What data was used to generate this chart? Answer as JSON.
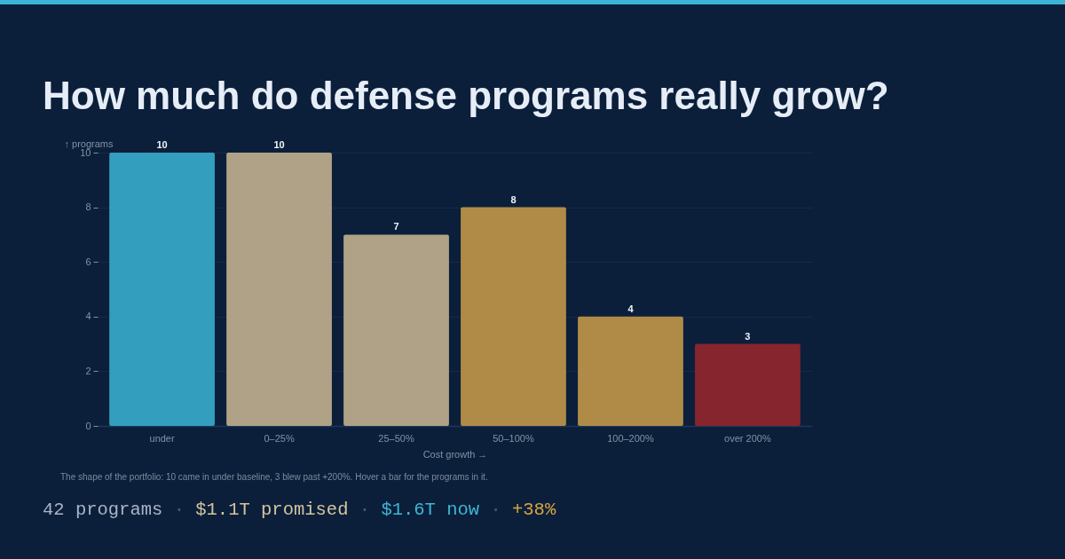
{
  "chart_data": {
    "type": "bar",
    "title": "How much do defense programs really grow?",
    "xlabel": "Cost growth →",
    "ylabel": "↑ programs",
    "categories": [
      "under",
      "0–25%",
      "25–50%",
      "50–100%",
      "100–200%",
      "over 200%"
    ],
    "values": [
      10,
      10,
      7,
      8,
      4,
      3
    ],
    "colors": [
      "#339ebd",
      "#b0a286",
      "#b0a286",
      "#b08b48",
      "#b08b48",
      "#86252d"
    ],
    "ylim": [
      0,
      10
    ],
    "yticks": [
      0,
      2,
      4,
      6,
      8,
      10
    ],
    "grid": "y",
    "data_labels": true,
    "annotations": [
      "The shape of the portfolio: 10 came in under baseline, 3 blew past +200%. Hover a bar for the programs in it.",
      "42 programs · $1.1T promised · $1.6T now · +38%"
    ]
  }
}
